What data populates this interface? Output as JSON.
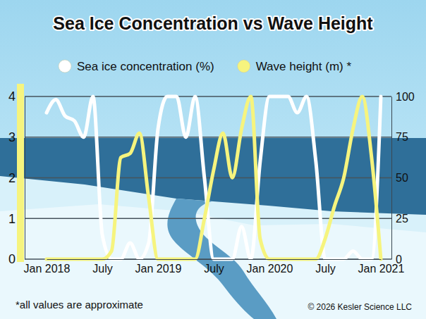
{
  "chart_data": {
    "type": "line",
    "title": "Sea Ice Concentration vs Wave Height",
    "footnote": "*all values are approximate",
    "copyright": "© 2026 Kesler Science LLC",
    "categories": [
      "Jan 2018",
      null,
      null,
      null,
      null,
      null,
      "July",
      null,
      null,
      null,
      null,
      null,
      "Jan 2019",
      null,
      null,
      null,
      null,
      null,
      "July",
      null,
      null,
      null,
      null,
      null,
      "Jan 2020",
      null,
      null,
      null,
      null,
      null,
      "July",
      null,
      null,
      null,
      null,
      null,
      "Jan 2021"
    ],
    "series": [
      {
        "name": "Sea ice concentration (%)",
        "color": "#ffffff",
        "axis": "y2",
        "values": [
          90,
          98,
          88,
          85,
          75,
          100,
          15,
          0,
          0,
          10,
          0,
          10,
          80,
          100,
          100,
          75,
          100,
          50,
          0,
          0,
          0,
          20,
          0,
          60,
          100,
          100,
          100,
          90,
          100,
          60,
          0,
          0,
          0,
          5,
          0,
          0,
          100
        ]
      },
      {
        "name": "Wave height (m) *",
        "color": "#f6f47e",
        "values": [
          0,
          0,
          0,
          0,
          0,
          0,
          0,
          0.2,
          2.5,
          2.6,
          3.1,
          1.5,
          0,
          0,
          0,
          0,
          0,
          1.0,
          2.2,
          3.1,
          2.0,
          3.2,
          4.0,
          0.5,
          0,
          0,
          0,
          0,
          0,
          0,
          0.5,
          1.3,
          2.0,
          3.2,
          4.0,
          2.5,
          0
        ]
      }
    ],
    "ylim": [
      0,
      4
    ],
    "yticks": [
      0,
      1,
      2,
      3,
      4
    ],
    "y2lim": [
      0,
      100
    ],
    "y2ticks": [
      0,
      25,
      50,
      75,
      100
    ],
    "grid": true,
    "legend": "top"
  }
}
